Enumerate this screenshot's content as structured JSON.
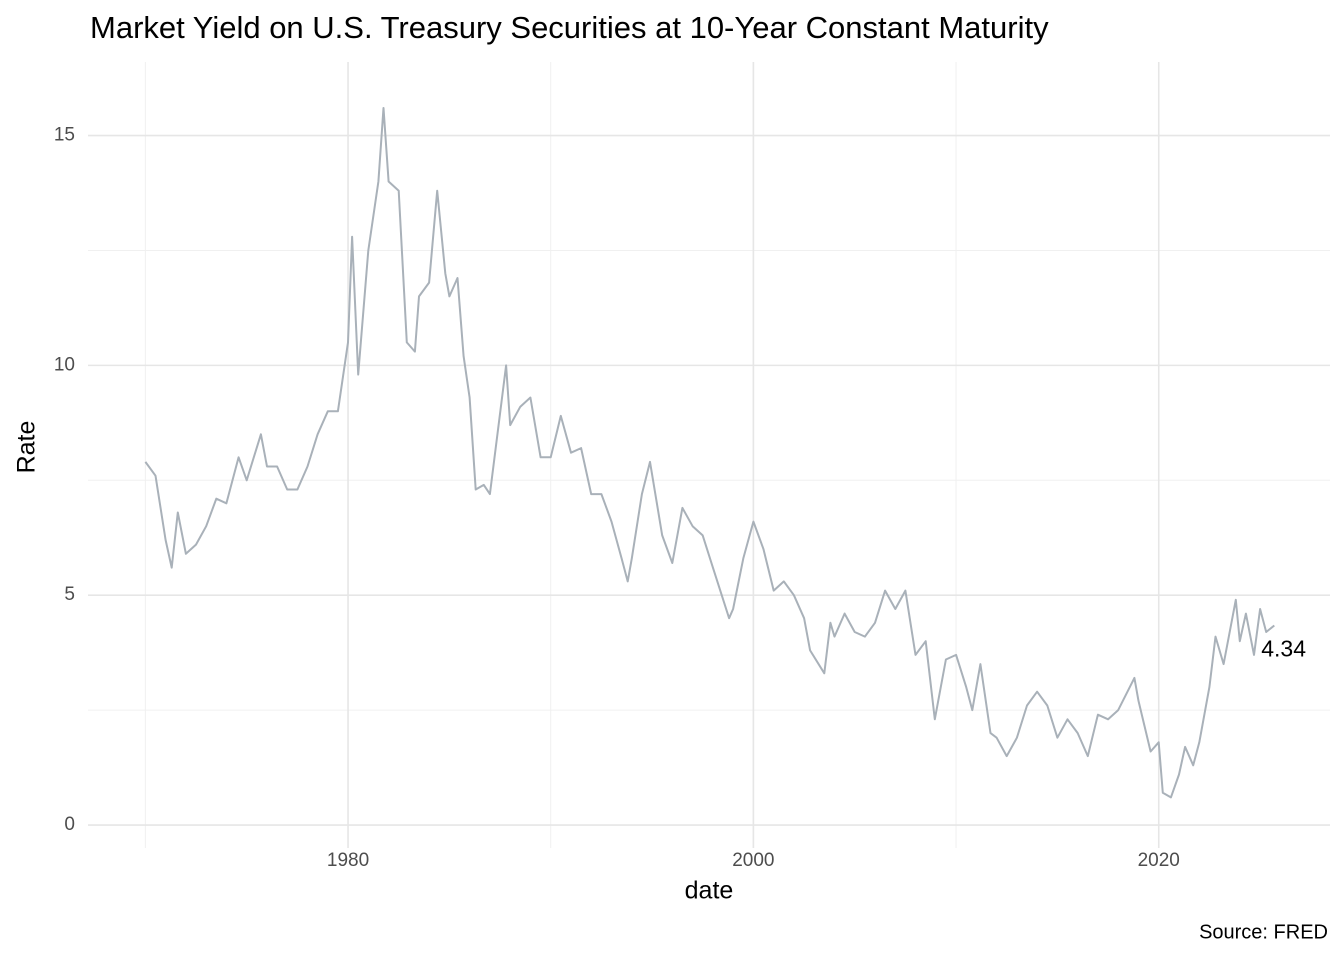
{
  "chart_data": {
    "type": "line",
    "title": "Market Yield on U.S. Treasury Securities at 10-Year Constant Maturity",
    "x_label": "date",
    "y_label": "Rate",
    "caption": "Source: FRED",
    "color": "#a9b1b9",
    "grid": true,
    "xlim": [
      1967.17,
      2028.45
    ],
    "ylim": [
      -0.5,
      16.6
    ],
    "xticks": [
      1980,
      2000,
      2020
    ],
    "yticks": [
      0,
      5,
      10,
      15
    ],
    "minor_xticks": [
      1970,
      1990,
      2010
    ],
    "minor_yticks": [
      2.5,
      7.5,
      12.5
    ],
    "x": [
      1970.0,
      1970.5,
      1971.0,
      1971.3,
      1971.6,
      1972.0,
      1972.5,
      1973.0,
      1973.5,
      1974.0,
      1974.6,
      1975.0,
      1975.7,
      1976.0,
      1976.5,
      1977.0,
      1977.5,
      1978.0,
      1978.5,
      1979.0,
      1979.5,
      1980.0,
      1980.2,
      1980.5,
      1981.0,
      1981.5,
      1981.75,
      1982.0,
      1982.5,
      1982.9,
      1983.3,
      1983.5,
      1984.0,
      1984.4,
      1984.8,
      1985.0,
      1985.4,
      1985.7,
      1986.0,
      1986.3,
      1986.7,
      1987.0,
      1987.8,
      1988.0,
      1988.5,
      1989.0,
      1989.5,
      1990.0,
      1990.5,
      1991.0,
      1991.5,
      1992.0,
      1992.5,
      1993.0,
      1993.5,
      1993.8,
      1994.0,
      1994.5,
      1994.9,
      1995.5,
      1996.0,
      1996.5,
      1997.0,
      1997.5,
      1998.0,
      1998.8,
      1999.0,
      1999.5,
      2000.0,
      2000.5,
      2001.0,
      2001.5,
      2002.0,
      2002.5,
      2002.8,
      2003.5,
      2003.8,
      2004.0,
      2004.5,
      2005.0,
      2005.5,
      2006.0,
      2006.5,
      2007.0,
      2007.5,
      2008.0,
      2008.5,
      2008.95,
      2009.5,
      2010.0,
      2010.5,
      2010.8,
      2011.2,
      2011.7,
      2012.0,
      2012.5,
      2013.0,
      2013.5,
      2014.0,
      2014.5,
      2015.0,
      2015.5,
      2016.0,
      2016.5,
      2017.0,
      2017.5,
      2018.0,
      2018.8,
      2019.0,
      2019.6,
      2020.0,
      2020.2,
      2020.6,
      2021.0,
      2021.3,
      2021.7,
      2022.0,
      2022.5,
      2022.8,
      2023.2,
      2023.8,
      2024.0,
      2024.3,
      2024.7,
      2025.0,
      2025.3,
      2025.7
    ],
    "values": [
      7.9,
      7.6,
      6.2,
      5.6,
      6.8,
      5.9,
      6.1,
      6.5,
      7.1,
      7.0,
      8.0,
      7.5,
      8.5,
      7.8,
      7.8,
      7.3,
      7.3,
      7.8,
      8.5,
      9.0,
      9.0,
      10.5,
      12.8,
      9.8,
      12.5,
      14.0,
      15.6,
      14.0,
      13.8,
      10.5,
      10.3,
      11.5,
      11.8,
      13.8,
      12.0,
      11.5,
      11.9,
      10.2,
      9.3,
      7.3,
      7.4,
      7.2,
      10.0,
      8.7,
      9.1,
      9.3,
      8.0,
      8.0,
      8.9,
      8.1,
      8.2,
      7.2,
      7.2,
      6.6,
      5.8,
      5.3,
      5.8,
      7.2,
      7.9,
      6.3,
      5.7,
      6.9,
      6.5,
      6.3,
      5.6,
      4.5,
      4.7,
      5.8,
      6.6,
      6.0,
      5.1,
      5.3,
      5.0,
      4.5,
      3.8,
      3.3,
      4.4,
      4.1,
      4.6,
      4.2,
      4.1,
      4.4,
      5.1,
      4.7,
      5.1,
      3.7,
      4.0,
      2.3,
      3.6,
      3.7,
      3.0,
      2.5,
      3.5,
      2.0,
      1.9,
      1.5,
      1.9,
      2.6,
      2.9,
      2.6,
      1.9,
      2.3,
      2.0,
      1.5,
      2.4,
      2.3,
      2.5,
      3.2,
      2.7,
      1.6,
      1.8,
      0.7,
      0.6,
      1.1,
      1.7,
      1.3,
      1.8,
      3.0,
      4.1,
      3.5,
      4.9,
      4.0,
      4.6,
      3.7,
      4.7,
      4.2,
      4.34
    ],
    "annotations": [
      {
        "text": "4.34",
        "x": 2025.7,
        "y": 4.34
      }
    ]
  }
}
